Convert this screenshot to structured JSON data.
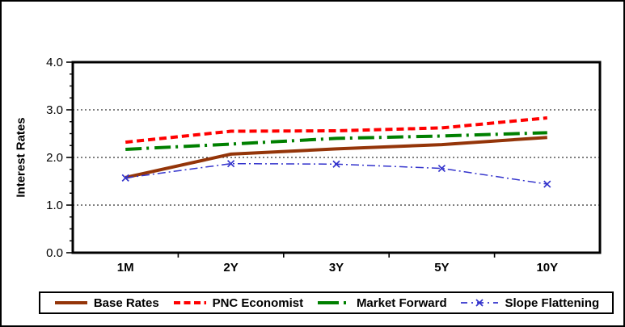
{
  "chart_data": {
    "type": "line",
    "ylabel": "Interest Rates",
    "categories": [
      "1M",
      "2Y",
      "3Y",
      "5Y",
      "10Y"
    ],
    "ylim": [
      0.0,
      4.0
    ],
    "yticks": [
      0,
      1,
      2,
      3,
      4
    ],
    "ytick_labels": [
      "0.0",
      "1.0",
      "2.0",
      "3.0",
      "4.0"
    ],
    "minor_tick_step": 0.25,
    "grid": "horizontal dotted gridlines at 1.0, 2.0, 3.0",
    "legend_position": "bottom boxed",
    "axis_color": "#000000",
    "series": [
      {
        "name": "Base Rates",
        "color": "#943509",
        "style": "solid",
        "line_width": 4,
        "marker": "none",
        "values": [
          1.58,
          2.07,
          2.18,
          2.27,
          2.42
        ]
      },
      {
        "name": "PNC Economist",
        "color": "#FF0000",
        "style": "dashed",
        "line_width": 4,
        "marker": "none",
        "values": [
          2.32,
          2.55,
          2.56,
          2.62,
          2.83
        ]
      },
      {
        "name": "Market Forward",
        "color": "#008000",
        "style": "long-dash-dot",
        "line_width": 4,
        "marker": "none",
        "values": [
          2.17,
          2.28,
          2.4,
          2.45,
          2.52
        ]
      },
      {
        "name": "Slope Flattening",
        "color": "#3333CC",
        "style": "dash-dot",
        "line_width": 1.5,
        "marker": "x",
        "values": [
          1.57,
          1.87,
          1.86,
          1.77,
          1.44
        ]
      }
    ]
  }
}
